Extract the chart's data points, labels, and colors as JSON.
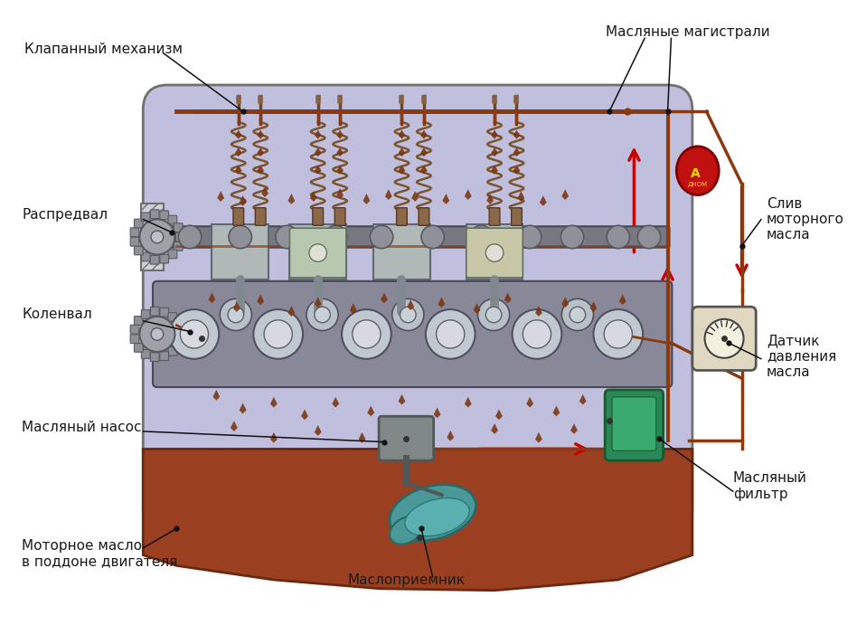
{
  "labels": {
    "valve_mechanism": "Клапанный механизм",
    "oil_mains": "Масляные магистрали",
    "camshaft": "Распредвал",
    "oil_drain": "Слив\nмоторного\nмасла",
    "crankshaft": "Коленвал",
    "pressure_sensor": "Датчик\nдавления\nмасла",
    "oil_pump": "Масляный насос",
    "oil_filter": "Масляный\nфильтр",
    "motor_oil": "Моторное масло\nв поддоне двигателя",
    "oil_intake": "Маслоприемник"
  },
  "colors": {
    "background": "#ffffff",
    "engine_body": "#c0c0de",
    "oil_pan": "#9a4020",
    "line_color": "#8b3a10",
    "red_arrow": "#cc0000",
    "spring_color": "#7a5530",
    "shaft_color": "#909098",
    "piston_color": "#b8c8b0",
    "filter_color": "#2a8858",
    "filter_light": "#3aaa70",
    "gauge_color": "#e0d8c0",
    "label_color": "#1a1a1a",
    "connector_color": "#111111",
    "oil_drop": "#7a3510",
    "intake_color": "#4a9898",
    "pump_color": "#808888"
  }
}
